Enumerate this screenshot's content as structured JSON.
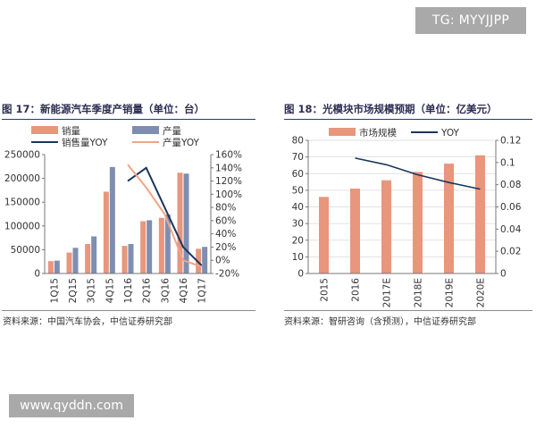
{
  "watermark_top": "TG: MYYJJPP",
  "watermark_bottom": "www.qyddn.com",
  "colors": {
    "sales_bar": "#e8967c",
    "production_bar": "#7f8eb0",
    "sales_line": "#1b365d",
    "production_line": "#f0a586",
    "market_bar": "#e8967c",
    "yoy_line": "#1b365d"
  },
  "chart_data": [
    {
      "type": "bar",
      "title": "图 17：新能源汽车季度产销量（单位：台）",
      "source": "资料来源：中国汽车协会，中信证券研究部",
      "categories": [
        "1Q15",
        "2Q15",
        "3Q15",
        "4Q15",
        "1Q16",
        "2Q16",
        "3Q16",
        "4Q16",
        "1Q17"
      ],
      "series": [
        {
          "name": "销量",
          "kind": "bar",
          "axis": "left",
          "values": [
            26000,
            44000,
            62000,
            172000,
            58000,
            110000,
            117000,
            212000,
            52000
          ]
        },
        {
          "name": "产量",
          "kind": "bar",
          "axis": "left",
          "values": [
            27000,
            54000,
            78000,
            224000,
            62000,
            112000,
            124000,
            210000,
            56000
          ]
        },
        {
          "name": "销售量YOY",
          "kind": "line",
          "axis": "right",
          "values": [
            null,
            null,
            null,
            null,
            120,
            140,
            80,
            20,
            -8
          ]
        },
        {
          "name": "产量YOY",
          "kind": "line",
          "axis": "right",
          "values": [
            null,
            null,
            null,
            null,
            145,
            110,
            70,
            0,
            -10
          ]
        }
      ],
      "yticks_left": [
        "0",
        "50000",
        "100000",
        "150000",
        "200000",
        "250000"
      ],
      "ylim_left": [
        0,
        250000
      ],
      "yticks_right": [
        "-20%",
        "0%",
        "20%",
        "40%",
        "60%",
        "80%",
        "100%",
        "120%",
        "140%",
        "160%"
      ],
      "ylim_right": [
        -20,
        160
      ],
      "legend": "top"
    },
    {
      "type": "bar",
      "title": "图 18：光模块市场规模预期（单位：亿美元）",
      "source": "资料来源：智研咨询（含预测），中信证券研究部",
      "categories": [
        "2015",
        "2016",
        "2017E",
        "2018E",
        "2019E",
        "2020E"
      ],
      "series": [
        {
          "name": "市场规模",
          "kind": "bar",
          "axis": "left",
          "values": [
            46,
            51,
            56,
            61,
            66,
            71
          ]
        },
        {
          "name": "YOY",
          "kind": "line",
          "axis": "right",
          "values": [
            null,
            0.104,
            0.098,
            0.089,
            0.082,
            0.076
          ]
        }
      ],
      "yticks_left": [
        "0",
        "10",
        "20",
        "30",
        "40",
        "50",
        "60",
        "70",
        "80"
      ],
      "ylim_left": [
        0,
        80
      ],
      "yticks_right": [
        "0",
        "0.02",
        "0.04",
        "0.06",
        "0.08",
        "0.1",
        "0.12"
      ],
      "ylim_right": [
        0,
        0.12
      ],
      "legend": "top"
    }
  ]
}
